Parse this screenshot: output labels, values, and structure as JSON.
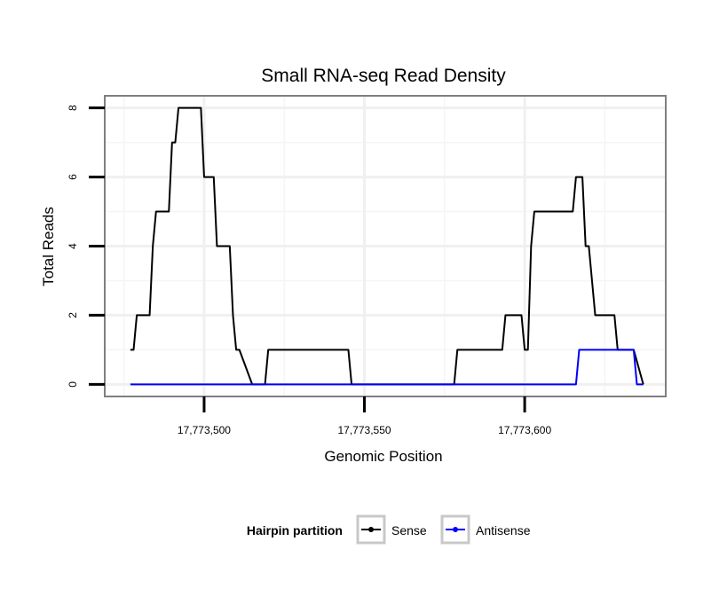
{
  "chart_data": {
    "type": "line",
    "title": "Small RNA-seq Read Density",
    "xlabel": "Genomic Position",
    "ylabel": "Total Reads",
    "xlim": [
      17773469,
      17773644
    ],
    "ylim": [
      -0.35,
      8.35
    ],
    "x_ticks": [
      17773500,
      17773550,
      17773600
    ],
    "x_tick_labels": [
      "17,773,500",
      "17,773,550",
      "17,773,600"
    ],
    "y_ticks": [
      0,
      2,
      4,
      6,
      8
    ],
    "y_tick_labels": [
      "0",
      "2",
      "4",
      "6",
      "8"
    ],
    "grid": true,
    "legend": {
      "title": "Hairpin partition",
      "position": "bottom",
      "entries": [
        "Sense",
        "Antisense"
      ]
    },
    "series": [
      {
        "name": "Sense",
        "color": "#000000",
        "x": [
          17773477,
          17773478,
          17773479,
          17773483,
          17773484,
          17773485,
          17773489,
          17773490,
          17773491,
          17773492,
          17773494,
          17773499,
          17773500,
          17773503,
          17773504,
          17773508,
          17773509,
          17773510,
          17773511,
          17773515,
          17773516,
          17773519,
          17773520,
          17773545,
          17773546,
          17773578,
          17773579,
          17773593,
          17773594,
          17773599,
          17773600,
          17773601,
          17773602,
          17773603,
          17773604,
          17773615,
          17773616,
          17773618,
          17773619,
          17773620,
          17773622,
          17773623,
          17773628,
          17773629,
          17773630,
          17773634,
          17773637
        ],
        "values": [
          1,
          1,
          2,
          2,
          4,
          5,
          5,
          7,
          7,
          8,
          8,
          8,
          6,
          6,
          4,
          4,
          2,
          1,
          1,
          0,
          0,
          0,
          1,
          1,
          0,
          0,
          1,
          1,
          2,
          2,
          1,
          1,
          4,
          5,
          5,
          5,
          6,
          6,
          4,
          4,
          2,
          2,
          2,
          1,
          1,
          1,
          0
        ]
      },
      {
        "name": "Antisense",
        "color": "#0000ff",
        "x": [
          17773477,
          17773616,
          17773617,
          17773634,
          17773635,
          17773637
        ],
        "values": [
          0,
          0,
          1,
          1,
          0,
          0
        ]
      }
    ]
  }
}
